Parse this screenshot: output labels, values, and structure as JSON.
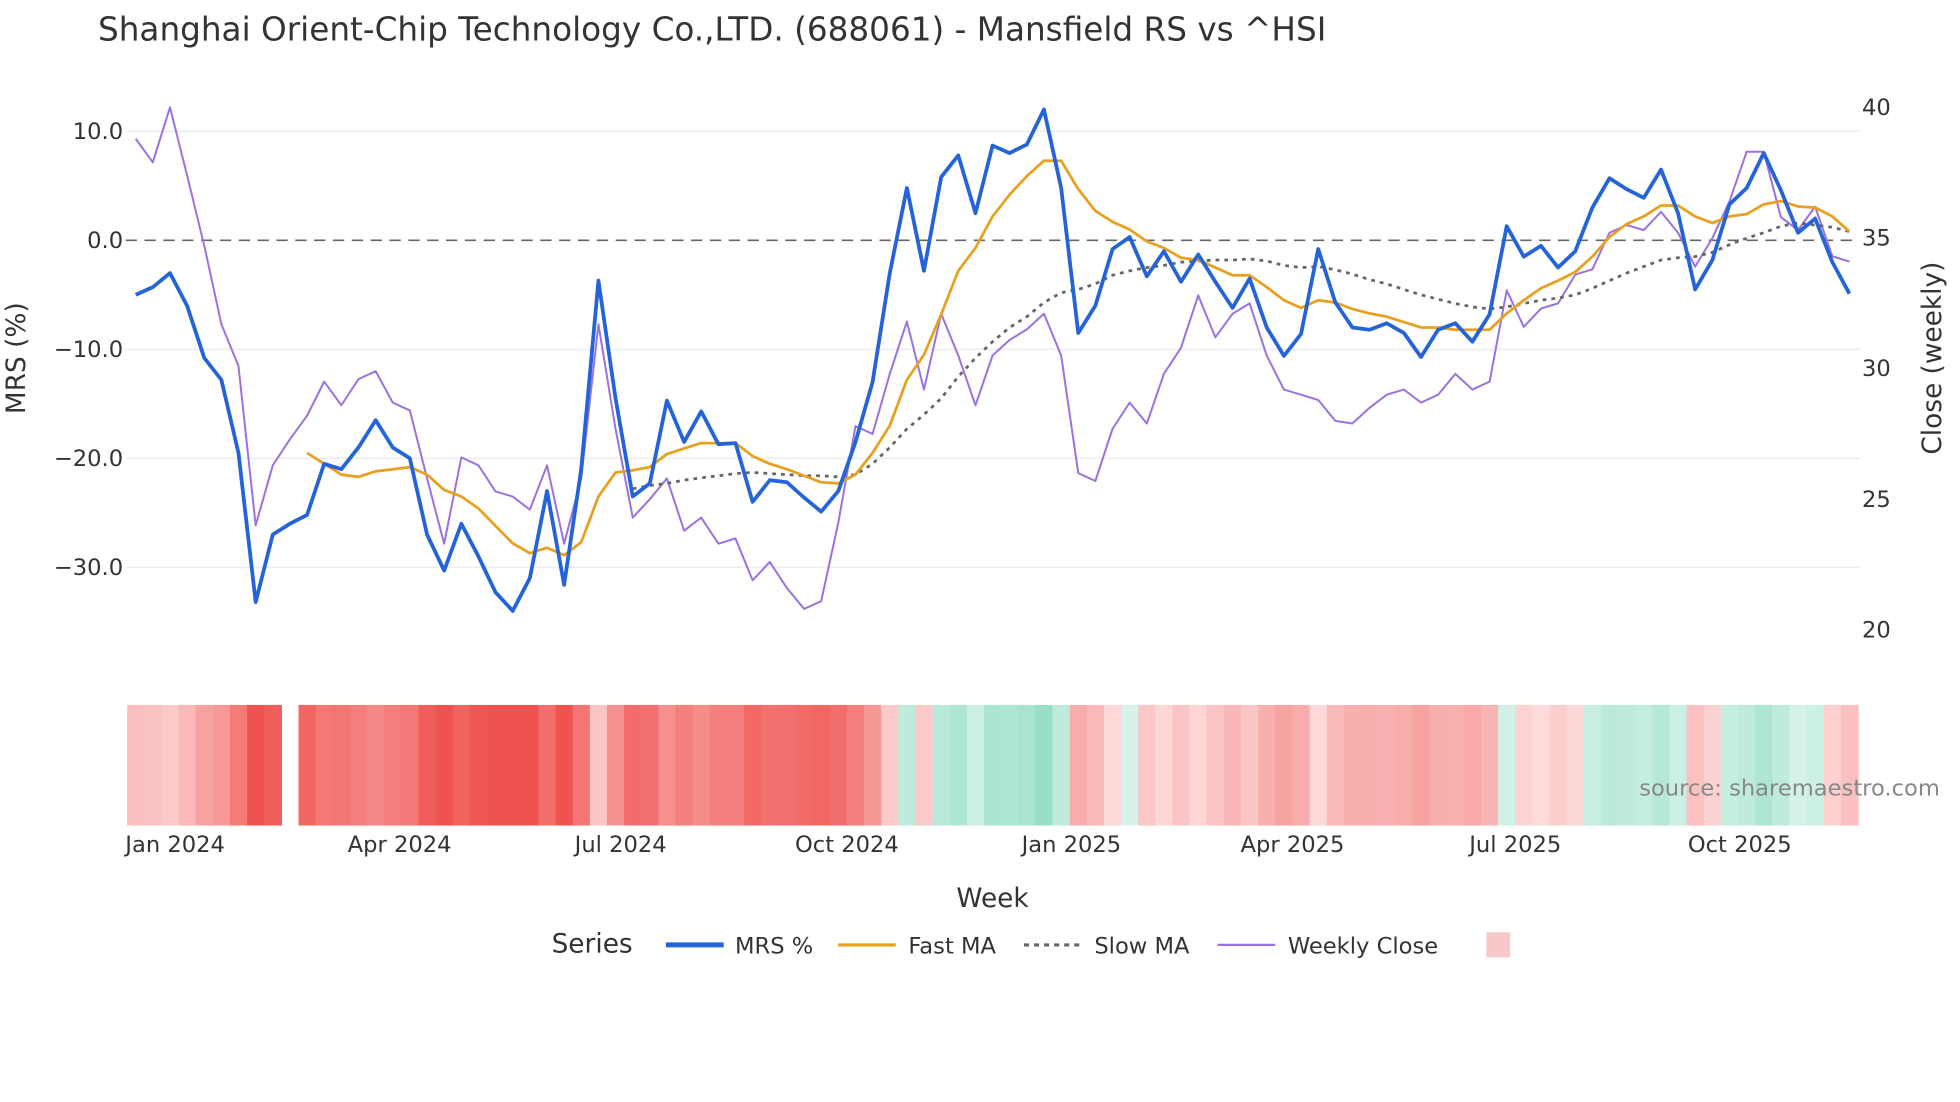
{
  "chart_data": {
    "type": "line",
    "title": "Shanghai Orient-Chip Technology Co.,LTD. (688061) - Mansfield RS vs ^HSI",
    "xlabel": "Week",
    "ylabel": "MRS (%)",
    "y2label": "Close (weekly)",
    "ylim": [
      -37.9,
      13.4
    ],
    "y2lim": [
      19.1,
      40.5
    ],
    "yticks": [
      {
        "v": 10,
        "label": "10.0"
      },
      {
        "v": 0,
        "label": "0.0"
      },
      {
        "v": -10,
        "label": "−10.0"
      },
      {
        "v": -20,
        "label": "−20.0"
      },
      {
        "v": -30,
        "label": "−30.0"
      }
    ],
    "y2ticks": [
      {
        "v": 40,
        "label": "40"
      },
      {
        "v": 35,
        "label": "35"
      },
      {
        "v": 30,
        "label": "30"
      },
      {
        "v": 25,
        "label": "25"
      },
      {
        "v": 20,
        "label": "20"
      }
    ],
    "xticks": [
      {
        "week": 2.3,
        "label": "Jan 2024"
      },
      {
        "week": 15.4,
        "label": "Apr 2024"
      },
      {
        "week": 28.3,
        "label": "Jul 2024"
      },
      {
        "week": 41.5,
        "label": "Oct 2024"
      },
      {
        "week": 54.6,
        "label": "Jan 2025"
      },
      {
        "week": 67.5,
        "label": "Apr 2025"
      },
      {
        "week": 80.5,
        "label": "Jul 2025"
      },
      {
        "week": 93.6,
        "label": "Oct 2025"
      }
    ],
    "zero_line": 0,
    "series": [
      {
        "name": "MRS %",
        "color": "#2563d9",
        "axis": "y",
        "values": [
          -5,
          -4.3,
          -3,
          -6,
          -10.8,
          -12.8,
          -19.5,
          -33.2,
          -27,
          -26,
          -25.2,
          -20.5,
          -21,
          -19,
          -16.5,
          -19,
          -20,
          -27,
          -30.3,
          -26,
          -29,
          -32.3,
          -34,
          -31,
          -23,
          -31.6,
          -21,
          -3.7,
          -14.5,
          -23.5,
          -22.3,
          -14.7,
          -18.5,
          -15.7,
          -18.7,
          -18.6,
          -24,
          -22,
          -22.2,
          -23.6,
          -24.9,
          -23,
          -18.5,
          -13,
          -3,
          4.8,
          -2.8,
          5.8,
          7.8,
          2.5,
          8.7,
          8,
          8.8,
          12,
          4.8,
          -8.5,
          -6,
          -0.8,
          0.3,
          -3.3,
          -1,
          -3.8,
          -1.3,
          -3.8,
          -6.2,
          -3.5,
          -8,
          -10.6,
          -8.6,
          -0.8,
          -5.7,
          -8,
          -8.2,
          -7.6,
          -8.5,
          -10.7,
          -8.2,
          -7.6,
          -9.3,
          -6.8,
          1.3,
          -1.5,
          -0.5,
          -2.5,
          -1,
          3,
          5.7,
          4.7,
          3.9,
          6.5,
          2.5,
          -4.5,
          -1.8,
          3.3,
          4.8,
          8,
          4.6,
          0.7,
          2,
          -2,
          -4.9
        ]
      },
      {
        "name": "Fast MA",
        "color": "#e8a020",
        "axis": "y",
        "values": [
          null,
          null,
          null,
          null,
          null,
          null,
          null,
          null,
          null,
          null,
          -19.5,
          -20.5,
          -21.5,
          -21.7,
          -21.2,
          -21,
          -20.8,
          -21.5,
          -22.9,
          -23.5,
          -24.6,
          -26.2,
          -27.8,
          -28.7,
          -28.2,
          -28.9,
          -27.7,
          -23.5,
          -21.3,
          -21.1,
          -20.8,
          -19.6,
          -19.1,
          -18.6,
          -18.6,
          -18.6,
          -19.8,
          -20.5,
          -21,
          -21.6,
          -22.2,
          -22.3,
          -21.5,
          -19.5,
          -17,
          -12.8,
          -10.5,
          -6.8,
          -2.8,
          -0.7,
          2.2,
          4.2,
          5.9,
          7.3,
          7.3,
          4.7,
          2.7,
          1.7,
          1,
          -0.1,
          -0.7,
          -1.6,
          -1.8,
          -2.5,
          -3.2,
          -3.2,
          -4.3,
          -5.5,
          -6.2,
          -5.5,
          -5.7,
          -6.3,
          -6.7,
          -7,
          -7.5,
          -8,
          -8,
          -8.2,
          -8.2,
          -8.2,
          -6.7,
          -5.5,
          -4.4,
          -3.7,
          -2.9,
          -1.5,
          0.3,
          1.5,
          2.2,
          3.2,
          3.2,
          2.2,
          1.6,
          2.2,
          2.4,
          3.3,
          3.6,
          3.1,
          3,
          2.2,
          0.8
        ]
      },
      {
        "name": "Slow MA",
        "color": "#666666",
        "axis": "y",
        "dash": true,
        "values": [
          null,
          null,
          null,
          null,
          null,
          null,
          null,
          null,
          null,
          null,
          null,
          null,
          null,
          null,
          null,
          null,
          null,
          null,
          null,
          null,
          null,
          null,
          null,
          null,
          null,
          null,
          null,
          null,
          null,
          -22.8,
          -22.5,
          -22.3,
          -22,
          -21.8,
          -21.6,
          -21.4,
          -21.3,
          -21.4,
          -21.5,
          -21.6,
          -21.6,
          -21.7,
          -21.5,
          -20.5,
          -19,
          -17.3,
          -16,
          -14.5,
          -12.5,
          -10.8,
          -9.3,
          -8,
          -7,
          -5.7,
          -4.8,
          -4.5,
          -4,
          -3.2,
          -2.8,
          -2.5,
          -2.3,
          -2,
          -1.9,
          -1.8,
          -1.8,
          -1.7,
          -1.9,
          -2.3,
          -2.5,
          -2.4,
          -2.7,
          -3.1,
          -3.6,
          -4,
          -4.5,
          -5,
          -5.4,
          -5.8,
          -6.1,
          -6.3,
          -6.1,
          -5.8,
          -5.5,
          -5.3,
          -5,
          -4.4,
          -3.7,
          -3,
          -2.4,
          -1.8,
          -1.6,
          -1.5,
          -1.1,
          -0.4,
          0.2,
          0.7,
          1.3,
          1.6,
          1.4,
          1.2,
          0.8
        ]
      },
      {
        "name": "Weekly Close",
        "color": "#9b72e0",
        "axis": "y2",
        "values": [
          38.8,
          37.9,
          40,
          37.4,
          34.7,
          31.7,
          30.1,
          24,
          26.3,
          27.3,
          28.2,
          29.5,
          28.6,
          29.6,
          29.9,
          28.7,
          28.4,
          25.8,
          23.3,
          26.6,
          26.3,
          25.3,
          25.1,
          24.6,
          26.3,
          23.3,
          25.8,
          31.7,
          27.7,
          24.3,
          25,
          25.8,
          23.8,
          24.3,
          23.3,
          23.5,
          21.9,
          22.6,
          21.6,
          20.8,
          21.1,
          24.1,
          27.8,
          27.5,
          29.8,
          31.8,
          29.2,
          32.1,
          30.5,
          28.6,
          30.5,
          31.1,
          31.5,
          32.1,
          30.5,
          26,
          25.7,
          27.7,
          28.7,
          27.9,
          29.8,
          30.8,
          32.8,
          31.2,
          32.1,
          32.5,
          30.5,
          29.2,
          29,
          28.8,
          28,
          27.9,
          28.5,
          29,
          29.2,
          28.7,
          29,
          29.8,
          29.2,
          29.5,
          33,
          31.6,
          32.3,
          32.5,
          33.6,
          33.8,
          35.2,
          35.5,
          35.3,
          36,
          35.2,
          33.9,
          35,
          36.4,
          38.3,
          38.3,
          35.8,
          35.3,
          36.2,
          34.3,
          34.1
        ]
      }
    ],
    "heatmap": {
      "source_series": "MRS %",
      "missing_weeks": [
        9
      ],
      "neg_color": "#ef5350",
      "pos_color": "#98dfc6",
      "neutral_neg": "#fde0e0",
      "neutral_pos": "#d8f3ea"
    },
    "legend": {
      "title": "Series",
      "placement": "bottom",
      "items": [
        "MRS %",
        "Fast MA",
        "Slow MA",
        "Weekly Close"
      ],
      "extra_swatch_color": "#f8c8c8"
    },
    "source": "source: sharemaestro.com"
  }
}
